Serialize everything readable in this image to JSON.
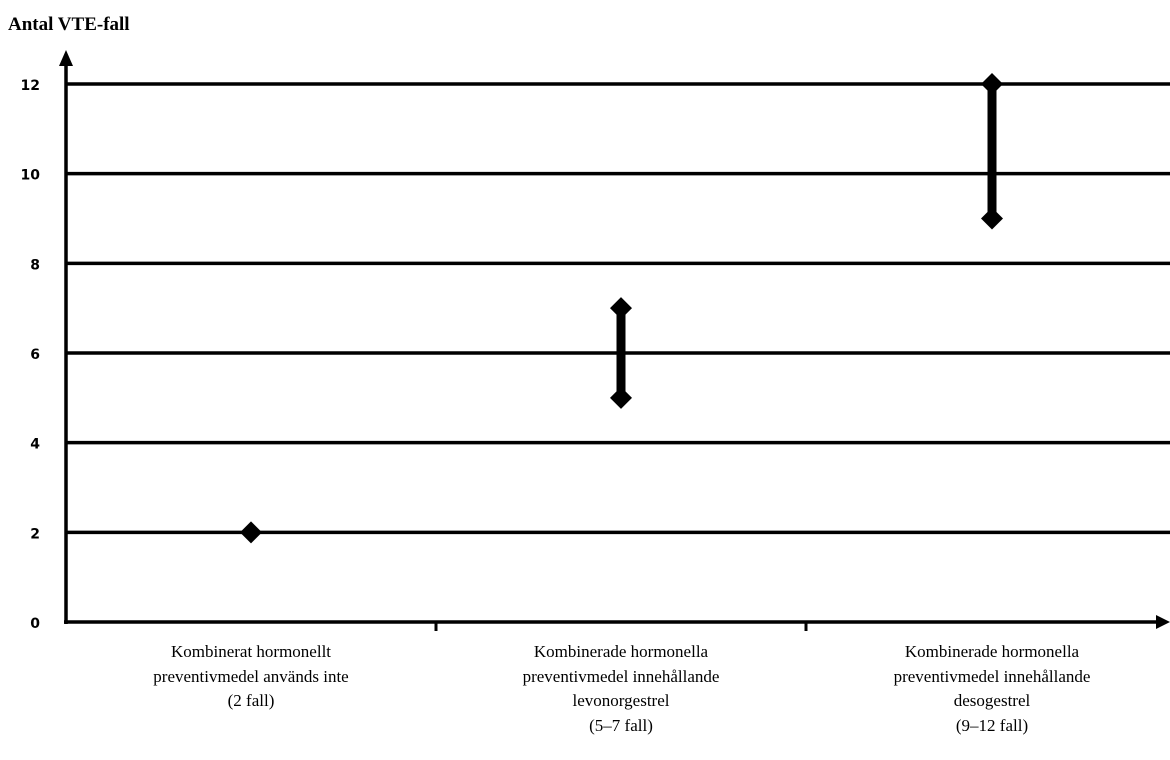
{
  "chart_data": {
    "type": "scatter",
    "ylabel": "Antal VTE-fall",
    "ylim": [
      0,
      12
    ],
    "yticks": [
      0,
      2,
      4,
      6,
      8,
      10,
      12
    ],
    "grid": true,
    "categories": [
      {
        "lines": [
          "Kombinerat hormonellt",
          "preventivmedel används inte",
          "(2 fall)"
        ],
        "low": 2,
        "high": 2
      },
      {
        "lines": [
          "Kombinerade hormonella",
          "preventivmedel innehållande",
          "levonorgestrel",
          "(5–7 fall)"
        ],
        "low": 5,
        "high": 7
      },
      {
        "lines": [
          "Kombinerade hormonella",
          "preventivmedel innehållande",
          "desogestrel",
          "(9–12 fall)"
        ],
        "low": 9,
        "high": 12
      }
    ],
    "marker": "diamond",
    "color": "#000000"
  }
}
